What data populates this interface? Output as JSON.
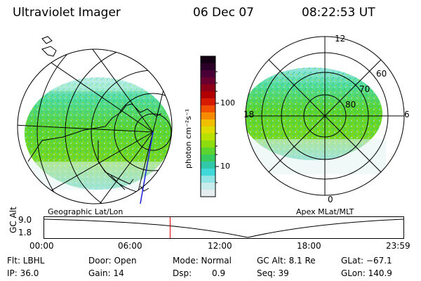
{
  "header": {
    "title": "Ultraviolet Imager",
    "date": "06 Dec 07",
    "time": "08:22:53 UT"
  },
  "colorbar": {
    "unit_label": "photon cm⁻²s⁻¹",
    "ticks": [
      "100",
      "10"
    ],
    "colors": [
      "#140014",
      "#2a0028",
      "#4a0036",
      "#6a0030",
      "#8e0018",
      "#b00000",
      "#d81a00",
      "#f05000",
      "#f68a00",
      "#f0c000",
      "#dcdc00",
      "#b8e000",
      "#8cdc10",
      "#5cd430",
      "#38cc60",
      "#30c8a8",
      "#40d8d8",
      "#90e4e4",
      "#c8ecec",
      "#e4eeee"
    ]
  },
  "left_panel": {
    "label": "Geographic Lat/Lon"
  },
  "right_panel": {
    "label": "Apex MLat/MLT",
    "mlt_labels": {
      "top": "12",
      "left": "18",
      "right": "6",
      "bottom": "0"
    },
    "lat_labels": [
      "60",
      "70",
      "80"
    ]
  },
  "timeline": {
    "y_label": "GC Alt",
    "y_ticks": [
      "9.0",
      "1.8"
    ],
    "x_ticks": [
      "00:00",
      "06:00",
      "12:00",
      "18:00",
      "23:59"
    ],
    "current_time_fraction": 0.35,
    "marker_color": "#e00000"
  },
  "info": {
    "row1": {
      "filter": "Flt: LBHL",
      "door": "Door: Open",
      "mode": "Mode: Normal",
      "gc_alt": "GC Alt: 8.1 Re",
      "glat": "GLat: −67.1"
    },
    "row2": {
      "ip": "IP: 36.0",
      "gain": "Gain: 14",
      "dsp_label": "Dsp:",
      "dsp_value": "0.9",
      "seq": "Seq: 39",
      "glon": "GLon: 140.9"
    }
  }
}
